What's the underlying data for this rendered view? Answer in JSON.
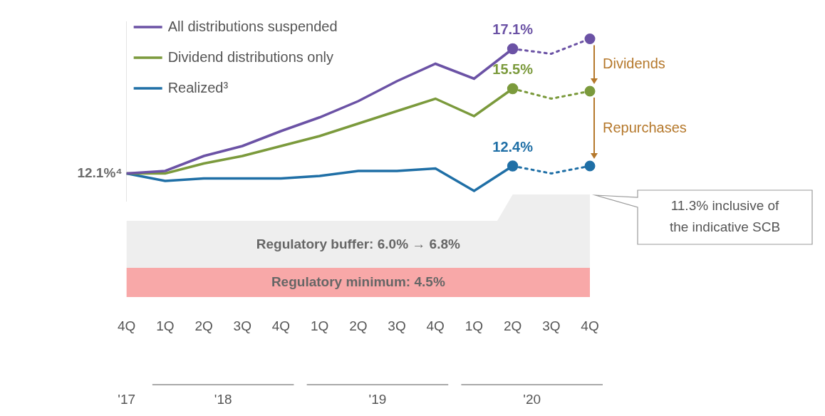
{
  "chart_data": {
    "type": "line",
    "categories": [
      "4Q",
      "1Q",
      "2Q",
      "3Q",
      "4Q",
      "1Q",
      "2Q",
      "3Q",
      "4Q",
      "1Q",
      "2Q",
      "3Q",
      "4Q"
    ],
    "category_groups": [
      {
        "label": "'17",
        "from": 0,
        "to": 0
      },
      {
        "label": "'18",
        "from": 1,
        "to": 4
      },
      {
        "label": "'19",
        "from": 5,
        "to": 8
      },
      {
        "label": "'20",
        "from": 9,
        "to": 12
      }
    ],
    "series": [
      {
        "name": "All distributions suspended",
        "color": "#6b52a5",
        "values": [
          12.1,
          12.2,
          12.8,
          13.2,
          13.8,
          14.35,
          15.0,
          15.8,
          16.5,
          15.9,
          17.1,
          null,
          null
        ],
        "projected_values": [
          null,
          null,
          null,
          null,
          null,
          null,
          null,
          null,
          null,
          null,
          null,
          16.9,
          17.5
        ],
        "value_labels": [
          null,
          null,
          null,
          null,
          null,
          null,
          null,
          null,
          null,
          null,
          "17.1%",
          null,
          null
        ]
      },
      {
        "name": "Dividend distributions only",
        "color": "#7b9a3c",
        "values": [
          12.1,
          12.1,
          12.5,
          12.8,
          13.2,
          13.6,
          14.1,
          14.6,
          15.1,
          14.4,
          15.5,
          null,
          null
        ],
        "projected_values": [
          null,
          null,
          null,
          null,
          null,
          null,
          null,
          null,
          null,
          null,
          null,
          15.1,
          15.4
        ],
        "value_labels": [
          null,
          null,
          null,
          null,
          null,
          null,
          null,
          null,
          null,
          null,
          "15.5%",
          null,
          null
        ]
      },
      {
        "name": "Realized³",
        "color": "#1f6fa6",
        "values": [
          12.1,
          11.8,
          11.9,
          11.9,
          11.9,
          12.0,
          12.2,
          12.2,
          12.3,
          11.4,
          12.4,
          null,
          null
        ],
        "projected_values": [
          null,
          null,
          null,
          null,
          null,
          null,
          null,
          null,
          null,
          null,
          null,
          12.1,
          12.4
        ],
        "value_labels": [
          null,
          null,
          null,
          null,
          null,
          null,
          null,
          null,
          null,
          null,
          "12.4%",
          null,
          null
        ]
      }
    ],
    "annotations": [
      {
        "text": "12.1%⁴",
        "x": 0,
        "y": 12.1
      }
    ],
    "brackets": [
      {
        "text": "Dividends",
        "from_series": 0,
        "to_series": 1,
        "color": "#b5782b"
      },
      {
        "text": "Repurchases",
        "from_series": 1,
        "to_series": 2,
        "color": "#b5782b"
      }
    ],
    "bands": [
      {
        "label": "Regulatory minimum: 4.5%",
        "color": "#f8a8a8"
      },
      {
        "label": "Regulatory buffer: 6.0% → 6.8%",
        "color": "#eeeeee"
      }
    ],
    "callout": {
      "lines": [
        "11.3% inclusive of",
        "the indicative SCB"
      ]
    },
    "ylim": [
      11.0,
      18.2
    ],
    "grid": false,
    "tick_labels": "x",
    "legend": "upper left",
    "marker": "circle"
  }
}
